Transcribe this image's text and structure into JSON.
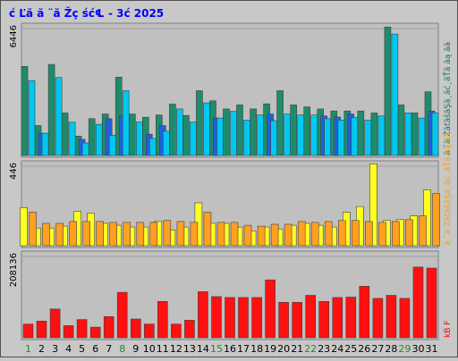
{
  "title": "ć Ľă  ă ¨ă Žç ść℄  - 3ć    2025",
  "colors": {
    "background": "#c8c8c8",
    "panel": "#c0c0c0",
    "grid": "#a0a0a0",
    "title": "#0000ff",
    "weekday": "#1e7a52",
    "weekend": "#228b22"
  },
  "chart_data": [
    {
      "type": "bar",
      "ylabel": "6446",
      "ymax": 6446,
      "legend_right": "ă ˘ă ŻăťăšăŞă¸ăć¸ăŤă ăą ăă",
      "legend_colors": [
        "#1e7a52",
        "#1e7a52",
        "#1e7a52",
        "#1e7a52",
        "#2060e0",
        "#00c8f0"
      ],
      "categories": [
        "1",
        "2",
        "3",
        "4",
        "5",
        "6",
        "7",
        "8",
        "9",
        "10",
        "11",
        "12",
        "13",
        "14",
        "15",
        "16",
        "17",
        "18",
        "19",
        "20",
        "21",
        "22",
        "23",
        "24",
        "25",
        "26",
        "27",
        "28",
        "29",
        "30",
        "31"
      ],
      "series": [
        {
          "color": "#1e8c6c",
          "values": [
            4400,
            1480,
            4500,
            2100,
            960,
            1820,
            2050,
            3870,
            2050,
            1890,
            2000,
            2540,
            1980,
            3200,
            2700,
            2300,
            2500,
            2300,
            2550,
            3200,
            2500,
            2400,
            2300,
            2200,
            2200,
            2200,
            2100,
            6350,
            2500,
            2100,
            3150
          ]
        },
        {
          "color": "#2060e0",
          "values": [
            0,
            1100,
            0,
            0,
            800,
            0,
            1820,
            1950,
            0,
            1050,
            1480,
            0,
            0,
            0,
            1850,
            0,
            0,
            0,
            2050,
            0,
            0,
            0,
            1950,
            1900,
            2050,
            0,
            0,
            0,
            0,
            0,
            2200
          ]
        },
        {
          "color": "#00c8f0",
          "values": [
            3700,
            1100,
            3850,
            1650,
            620,
            1540,
            1000,
            3200,
            1650,
            840,
            1200,
            2300,
            1650,
            2600,
            1850,
            2180,
            1750,
            2000,
            1720,
            2050,
            2000,
            2000,
            1820,
            1750,
            1870,
            1750,
            1950,
            6000,
            2100,
            1850,
            2100
          ]
        }
      ]
    },
    {
      "type": "bar",
      "ylabel": "446",
      "ymax": 446,
      "legend_right": "ă ˘ă ŻăťăšăŞă¸ăć¸ăŤă ăą ăă",
      "legend_colors": [
        "#ffa000",
        "#ffa000",
        "#ffa000",
        "#f0f000",
        "#f0f000",
        "#f0f000"
      ],
      "categories": [
        "1",
        "2",
        "3",
        "4",
        "5",
        "6",
        "7",
        "8",
        "9",
        "10",
        "11",
        "12",
        "13",
        "14",
        "15",
        "16",
        "17",
        "18",
        "19",
        "20",
        "21",
        "22",
        "23",
        "24",
        "25",
        "26",
        "27",
        "28",
        "29",
        "30",
        "31"
      ],
      "series": [
        {
          "color": "#ffff20",
          "values": [
            205,
            95,
            95,
            105,
            185,
            175,
            120,
            110,
            100,
            100,
            130,
            85,
            100,
            230,
            120,
            120,
            100,
            80,
            100,
            90,
            110,
            120,
            110,
            100,
            180,
            210,
            440,
            135,
            140,
            160,
            300
          ]
        },
        {
          "color": "#ffa020",
          "values": [
            180,
            120,
            120,
            130,
            130,
            130,
            125,
            125,
            125,
            125,
            135,
            130,
            125,
            180,
            125,
            125,
            110,
            105,
            115,
            115,
            130,
            125,
            130,
            135,
            135,
            130,
            125,
            130,
            140,
            160,
            280
          ]
        }
      ]
    },
    {
      "type": "bar",
      "ylabel": "208136",
      "ymax": 280000,
      "legend_right": "kB F",
      "legend_colors": [
        "#ff0000"
      ],
      "categories": [
        "1",
        "2",
        "3",
        "4",
        "5",
        "6",
        "7",
        "8",
        "9",
        "10",
        "11",
        "12",
        "13",
        "14",
        "15",
        "16",
        "17",
        "18",
        "19",
        "20",
        "21",
        "22",
        "23",
        "24",
        "25",
        "26",
        "27",
        "28",
        "29",
        "30",
        "31"
      ],
      "series": [
        {
          "color": "#ff1010",
          "values": [
            45000,
            55000,
            95000,
            40000,
            60000,
            35000,
            70000,
            150000,
            62000,
            45000,
            120000,
            45000,
            58000,
            152000,
            136000,
            133000,
            133000,
            133000,
            191000,
            117000,
            117000,
            140000,
            120000,
            133000,
            134000,
            170000,
            130000,
            140000,
            130000,
            233000,
            230000
          ]
        }
      ]
    }
  ],
  "weekends": [
    "1",
    "8",
    "15",
    "22",
    "29"
  ]
}
